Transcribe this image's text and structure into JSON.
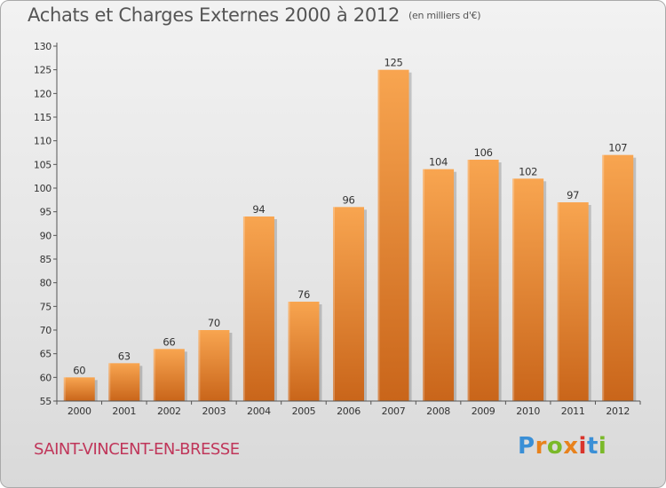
{
  "header": {
    "title": "Achats et Charges Externes 2000 à 2012",
    "unit": "(en milliers d'€)"
  },
  "footer": {
    "commune": "SAINT-VINCENT-EN-BRESSE",
    "logo_letters": [
      "P",
      "r",
      "o",
      "x",
      "i",
      "t",
      "i"
    ],
    "logo_colors": [
      "#3a8fd6",
      "#e8821c",
      "#7ab929",
      "#e8821c",
      "#d9342b",
      "#3a8fd6",
      "#7ab929"
    ]
  },
  "colors": {
    "bar_light": "#f8a550",
    "bar_dark": "#c9651a",
    "axis": "#555555"
  },
  "chart_data": {
    "type": "bar",
    "title": "Achats et Charges Externes 2000 à 2012",
    "subtitle": "(en milliers d'€)",
    "categories": [
      "2000",
      "2001",
      "2002",
      "2003",
      "2004",
      "2005",
      "2006",
      "2007",
      "2008",
      "2009",
      "2010",
      "2011",
      "2012"
    ],
    "values": [
      60,
      63,
      66,
      70,
      94,
      76,
      96,
      125,
      104,
      106,
      102,
      97,
      107
    ],
    "ylim": [
      55,
      130
    ],
    "yticks": [
      55,
      60,
      65,
      70,
      75,
      80,
      85,
      90,
      95,
      100,
      105,
      110,
      115,
      120,
      125,
      130
    ],
    "grid": false,
    "data_labels": true
  }
}
